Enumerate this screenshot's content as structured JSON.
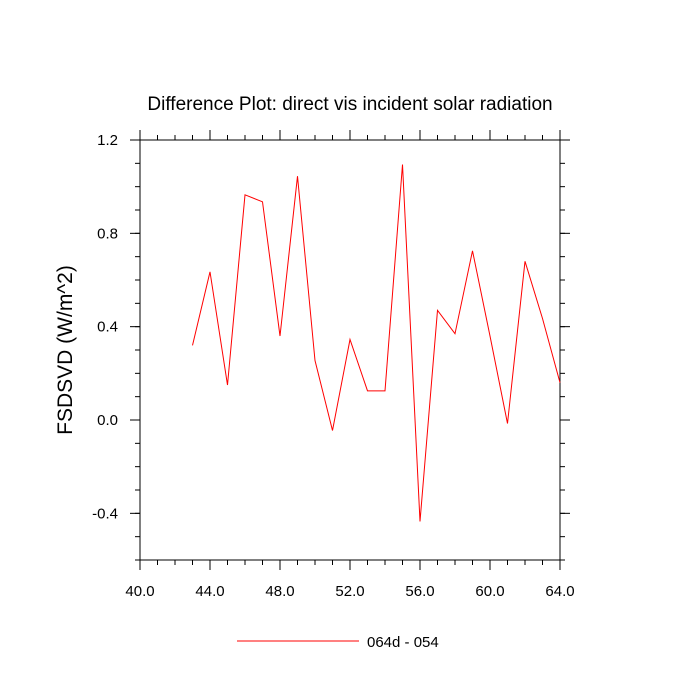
{
  "chart_data": {
    "type": "line",
    "title": "Difference Plot: direct vis incident solar radiation",
    "ylabel": "FSDSVD  (W/m^2)",
    "xlabel": "",
    "xlim": [
      40.0,
      64.0
    ],
    "ylim": [
      -0.6,
      1.2
    ],
    "x_ticks": [
      40.0,
      44.0,
      48.0,
      52.0,
      56.0,
      60.0,
      64.0
    ],
    "x_tick_labels": [
      "40.0",
      "44.0",
      "48.0",
      "52.0",
      "56.0",
      "60.0",
      "64.0"
    ],
    "x_minor_step": 1.0,
    "y_ticks": [
      -0.4,
      0.0,
      0.4,
      0.8,
      1.2
    ],
    "y_tick_labels": [
      "-0.4",
      "0.0",
      "0.4",
      "0.8",
      "1.2"
    ],
    "y_minor_step": 0.1,
    "grid": false,
    "legend_position": "bottom",
    "series": [
      {
        "name": "064d - 054",
        "color": "#ff0000",
        "x": [
          43,
          44,
          45,
          46,
          47,
          48,
          49,
          50,
          51,
          52,
          53,
          54,
          55,
          56,
          57,
          58,
          59,
          60,
          61,
          62,
          63,
          64
        ],
        "y": [
          0.32,
          0.635,
          0.15,
          0.965,
          0.935,
          0.36,
          1.045,
          0.255,
          -0.045,
          0.345,
          0.125,
          0.125,
          1.095,
          -0.435,
          0.47,
          0.37,
          0.725,
          0.36,
          -0.015,
          0.68,
          0.435,
          0.16
        ]
      }
    ]
  }
}
